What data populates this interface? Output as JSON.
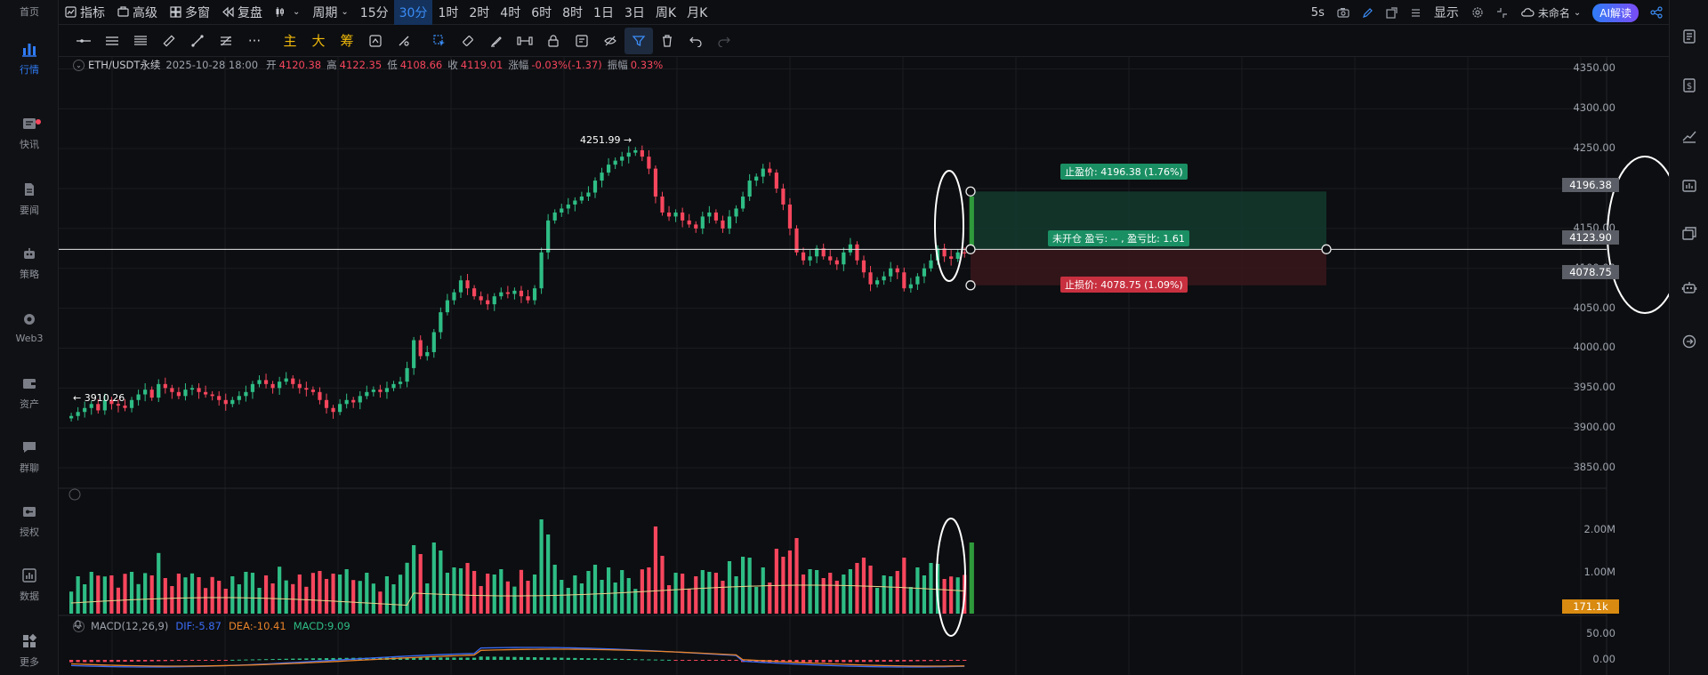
{
  "nav": {
    "items": [
      {
        "label": "首页",
        "icon": "home-icon"
      },
      {
        "label": "行情",
        "icon": "market-chart-icon",
        "active": true
      },
      {
        "label": "快讯",
        "icon": "news-icon"
      },
      {
        "label": "要闻",
        "icon": "document-icon"
      },
      {
        "label": "策略",
        "icon": "robot-icon"
      },
      {
        "label": "Web3",
        "icon": "web3-icon"
      },
      {
        "label": "资产",
        "icon": "wallet-icon"
      },
      {
        "label": "群聊",
        "icon": "chat-icon"
      },
      {
        "label": "授权",
        "icon": "key-icon"
      },
      {
        "label": "数据",
        "icon": "data-chart-icon"
      },
      {
        "label": "更多",
        "icon": "grid-icon"
      }
    ]
  },
  "toolbar": {
    "indicators": "指标",
    "advanced": "高级",
    "multi_window": "多窗",
    "replay": "复盘",
    "period": "周期",
    "intervals": [
      "15分",
      "30分",
      "1时",
      "2时",
      "4时",
      "6时",
      "8时",
      "1日",
      "3日",
      "周K",
      "月K"
    ],
    "selected_interval": "30分",
    "refresh": "5s",
    "display": "显示",
    "layout_name": "未命名",
    "ai_button": "AI解读"
  },
  "drawing_tools": {
    "main": "主",
    "big": "大",
    "chips": "筹"
  },
  "legend": {
    "symbol": "ETH/USDT永续",
    "datetime": "2025-10-28 18:00",
    "open_label": "开",
    "open": "4120.38",
    "high_label": "高",
    "high": "4122.35",
    "low_label": "低",
    "low": "4108.66",
    "close_label": "收",
    "close": "4119.01",
    "change_label": "涨幅",
    "change": "-0.03%(-1.37)",
    "amplitude_label": "振幅",
    "amplitude": "0.33%"
  },
  "position_tool": {
    "take_profit": "止盈价: 4196.38 (1.76%)",
    "stop_loss": "止损价: 4078.75 (1.09%)",
    "center": "未开仓 盈亏: -- , 盈亏比: 1.61",
    "tp_price": 4196.38,
    "entry_price": 4123.9,
    "sl_price": 4078.75
  },
  "markers": {
    "high": "4251.99",
    "low": "3910.26"
  },
  "price_axis": {
    "ticks": [
      4350,
      4300,
      4250,
      4200,
      4150,
      4100,
      4050,
      4000,
      3950,
      3900,
      3850
    ],
    "tick_labels": [
      "4350.00",
      "4300.00",
      "4250.00",
      "4200.00",
      "4150.00",
      "4100.00",
      "4050.00",
      "4000.00",
      "3950.00",
      "3900.00",
      "3850.00"
    ],
    "tp_box": "4196.38",
    "entry_box": "4123.90",
    "sl_box": "4078.75"
  },
  "volume_axis": {
    "tick_labels": [
      "2.00M",
      "1.00M"
    ],
    "current": "171.1k"
  },
  "macd": {
    "label": "MACD(12,26,9)",
    "dif": "DIF:-5.87",
    "dea": "DEA:-10.41",
    "macd": "MACD:9.09",
    "tick_labels": [
      "50.00",
      "0.00"
    ]
  },
  "colors": {
    "up": "#2ebd85",
    "down": "#f6465d",
    "accent": "#3b8df7",
    "ma": "#e8d28a",
    "dif": "#3b6df7",
    "dea": "#e8832a"
  },
  "chart_data": {
    "type": "candlestick",
    "symbol": "ETH/USDT永续",
    "interval": "30分",
    "ylim": [
      3830,
      4365
    ],
    "closes": [
      3915,
      3920,
      3925,
      3930,
      3922,
      3935,
      3930,
      3928,
      3925,
      3935,
      3942,
      3948,
      3938,
      3955,
      3950,
      3945,
      3940,
      3948,
      3950,
      3945,
      3942,
      3940,
      3935,
      3930,
      3935,
      3940,
      3945,
      3955,
      3960,
      3955,
      3950,
      3958,
      3962,
      3955,
      3950,
      3948,
      3945,
      3935,
      3925,
      3920,
      3930,
      3935,
      3932,
      3940,
      3945,
      3948,
      3945,
      3950,
      3955,
      3958,
      3975,
      4010,
      3990,
      3995,
      4020,
      4045,
      4060,
      4070,
      4085,
      4075,
      4065,
      4060,
      4055,
      4065,
      4070,
      4068,
      4072,
      4065,
      4060,
      4075,
      4120,
      4160,
      4170,
      4175,
      4180,
      4185,
      4190,
      4195,
      4210,
      4220,
      4230,
      4235,
      4240,
      4245,
      4248,
      4240,
      4225,
      4190,
      4170,
      4165,
      4170,
      4160,
      4155,
      4150,
      4165,
      4170,
      4160,
      4150,
      4165,
      4175,
      4190,
      4210,
      4215,
      4225,
      4220,
      4200,
      4180,
      4150,
      4120,
      4110,
      4115,
      4125,
      4115,
      4110,
      4105,
      4120,
      4130,
      4110,
      4095,
      4080,
      4085,
      4090,
      4100,
      4095,
      4075,
      4080,
      4090,
      4100,
      4110,
      4125,
      4115,
      4112,
      4120,
      4119
    ]
  }
}
